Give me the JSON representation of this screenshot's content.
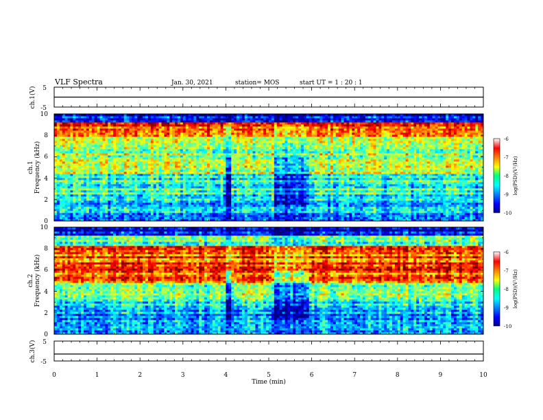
{
  "header": {
    "title": "VLF Spectra",
    "date": "Jan. 30, 2021",
    "station": "station= MOS",
    "start": "start  UT =   1 : 20 : 1"
  },
  "colors": {
    "spec_low": "#00008f",
    "spec_mid": "#00ff80",
    "spec_high": "#ff0000",
    "background": "#ffffff",
    "axes": "#000000"
  },
  "chart_data": [
    {
      "id": "ch1_voltage",
      "type": "line",
      "ylabel": "ch.1(V)",
      "ylim": [
        -5,
        5
      ],
      "y_ticks": [
        "5",
        "-5"
      ],
      "xlim": [
        0,
        10
      ],
      "series": [
        {
          "x": [
            0,
            10
          ],
          "values": [
            0,
            0
          ]
        }
      ]
    },
    {
      "id": "ch1_spectrogram",
      "type": "heatmap",
      "ylabel_line1": "ch.1",
      "ylabel_line2": "Frequency (kHz)",
      "ylim": [
        0,
        10
      ],
      "y_ticks": [
        "0",
        "2",
        "4",
        "6",
        "8",
        "10"
      ],
      "xlim": [
        0,
        10
      ],
      "colorbar": {
        "label": "log(PSD)(V²/Hz)",
        "range": [
          -10,
          -6
        ],
        "ticks": [
          "-6",
          "-7",
          "-8",
          "-9",
          "-10"
        ]
      }
    },
    {
      "id": "ch2_spectrogram",
      "type": "heatmap",
      "ylabel_line1": "ch.2",
      "ylabel_line2": "Frequency (kHz)",
      "ylim": [
        0,
        10
      ],
      "y_ticks": [
        "0",
        "2",
        "4",
        "6",
        "8",
        "10"
      ],
      "xlim": [
        0,
        10
      ],
      "colorbar": {
        "label": "log(PSD)(V²/Hz)",
        "range": [
          -10,
          -6
        ],
        "ticks": [
          "-6",
          "-7",
          "-8",
          "-9",
          "-10"
        ]
      }
    },
    {
      "id": "ch3_voltage",
      "type": "line",
      "ylabel": "ch.3(V)",
      "ylim": [
        -5,
        5
      ],
      "y_ticks": [
        "5",
        "-5"
      ],
      "xlim": [
        0,
        10
      ],
      "xlabel": "Time (min)",
      "x_ticks": [
        "0",
        "1",
        "2",
        "3",
        "4",
        "5",
        "6",
        "7",
        "8",
        "9",
        "10"
      ],
      "series": [
        {
          "x": [
            0,
            10
          ],
          "values": [
            -1.5,
            -1.5
          ]
        }
      ]
    }
  ]
}
